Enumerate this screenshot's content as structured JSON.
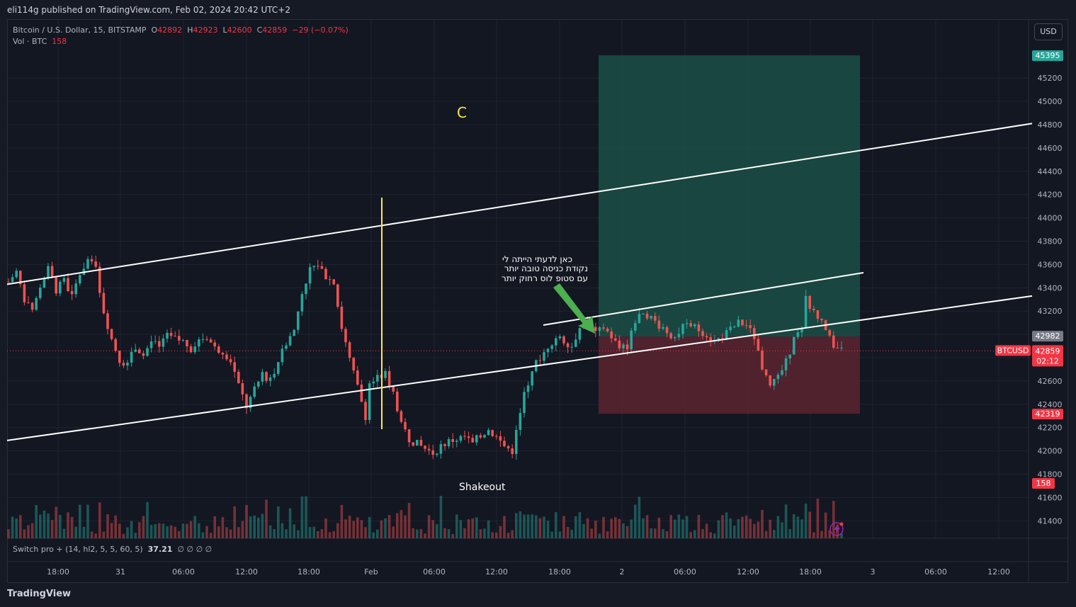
{
  "header": {
    "publisher": "eli114g published on TradingView.com, Feb 02, 2024 20:42 UTC+2"
  },
  "legend": {
    "symbol": "Bitcoin / U.S. Dollar, 15, BITSTAMP",
    "o_label": "O",
    "o_value": "42892",
    "h_label": "H",
    "h_value": "42923",
    "l_label": "L",
    "l_value": "42600",
    "c_label": "C",
    "c_value": "42859",
    "change": "−29 (−0.07%)",
    "vol_label": "Vol · BTC",
    "vol_value": "158"
  },
  "toolbar": {
    "currency_button": "USD"
  },
  "indicator": {
    "name": "Switch pro + (14, hl2, 5, 5, 60, 5)",
    "value": "37.21",
    "nulls": "∅ ∅ ∅ ∅"
  },
  "footer": {
    "brand": "TradingView"
  },
  "colors": {
    "up": "#26a69a",
    "down": "#ef5350",
    "target_zone": "#1b4f47",
    "stop_zone": "#5a2430",
    "yellow": "#ffeb3b",
    "arrow": "#4caf50"
  },
  "chart_data": {
    "type": "candlestick",
    "ylim": [
      41250,
      45700
    ],
    "y_ticks": [
      "45200",
      "45000",
      "44800",
      "44600",
      "44400",
      "44200",
      "44000",
      "43800",
      "43600",
      "43400",
      "43200",
      "43000",
      "42800",
      "42600",
      "42400",
      "42200",
      "42000",
      "41800",
      "41600",
      "41400"
    ],
    "x_ticks": [
      "18:00",
      "31",
      "06:00",
      "12:00",
      "18:00",
      "Feb",
      "06:00",
      "12:00",
      "18:00",
      "2",
      "06:00",
      "12:00",
      "18:00",
      "3",
      "06:00",
      "12:00"
    ],
    "price_labels": {
      "target": "45395",
      "entry": "42982",
      "symbol_tag": "BTCUSD",
      "last": "42859",
      "countdown": "02:12",
      "stop": "42319",
      "volume": "158"
    },
    "levels": {
      "target": 45395,
      "entry": 42982,
      "stop": 42319,
      "last": 42859
    },
    "annotations": {
      "wave_label": "C",
      "shakeout": "Shakeout",
      "note_line1": "כאן לדעתי הייתה לי",
      "note_line2": "נקודת כניסה טובה יותר",
      "note_line3": "עם סטופ לוס רחוק יותר"
    },
    "trend_lines": [
      {
        "from": [
          0,
          43430
        ],
        "to": [
          158,
          44810
        ]
      },
      {
        "from": [
          0,
          42090
        ],
        "to": [
          161,
          43330
        ]
      },
      {
        "from": [
          85,
          43080
        ],
        "to": [
          136,
          43530
        ]
      }
    ],
    "path": [
      [
        0,
        43450
      ],
      [
        2,
        43540
      ],
      [
        4,
        43300
      ],
      [
        6,
        43180
      ],
      [
        8,
        43420
      ],
      [
        10,
        43560
      ],
      [
        12,
        43380
      ],
      [
        14,
        43460
      ],
      [
        16,
        43320
      ],
      [
        18,
        43520
      ],
      [
        20,
        43640
      ],
      [
        22,
        43560
      ],
      [
        24,
        43200
      ],
      [
        26,
        42960
      ],
      [
        28,
        42780
      ],
      [
        30,
        42740
      ],
      [
        32,
        42900
      ],
      [
        34,
        42820
      ],
      [
        36,
        42940
      ],
      [
        38,
        42880
      ],
      [
        40,
        42980
      ],
      [
        42,
        42960
      ],
      [
        44,
        42940
      ],
      [
        46,
        42880
      ],
      [
        48,
        42950
      ],
      [
        50,
        42980
      ],
      [
        52,
        42880
      ],
      [
        54,
        42860
      ],
      [
        56,
        42780
      ],
      [
        58,
        42560
      ],
      [
        60,
        42380
      ],
      [
        62,
        42520
      ],
      [
        64,
        42660
      ],
      [
        66,
        42600
      ],
      [
        68,
        42780
      ],
      [
        70,
        42930
      ],
      [
        72,
        43040
      ],
      [
        74,
        43360
      ],
      [
        76,
        43560
      ],
      [
        78,
        43600
      ],
      [
        80,
        43500
      ],
      [
        82,
        43440
      ],
      [
        84,
        43060
      ],
      [
        86,
        42780
      ],
      [
        88,
        42550
      ],
      [
        90,
        42300
      ],
      [
        91,
        42580
      ],
      [
        93,
        42620
      ],
      [
        95,
        42660
      ],
      [
        97,
        42500
      ],
      [
        99,
        42240
      ],
      [
        101,
        42100
      ],
      [
        103,
        42060
      ],
      [
        105,
        42020
      ],
      [
        107,
        41980
      ],
      [
        109,
        42040
      ],
      [
        111,
        42080
      ],
      [
        113,
        42100
      ],
      [
        115,
        42120
      ],
      [
        117,
        42060
      ],
      [
        119,
        42140
      ],
      [
        121,
        42180
      ],
      [
        123,
        42120
      ],
      [
        125,
        42040
      ],
      [
        127,
        42000
      ],
      [
        128,
        42160
      ],
      [
        130,
        42480
      ],
      [
        132,
        42700
      ],
      [
        134,
        42800
      ],
      [
        136,
        42900
      ],
      [
        138,
        42980
      ],
      [
        140,
        42950
      ],
      [
        142,
        42900
      ],
      [
        144,
        43060
      ],
      [
        146,
        43100
      ],
      [
        148,
        43000
      ],
      [
        150,
        43060
      ],
      [
        152,
        42980
      ],
      [
        154,
        42880
      ],
      [
        156,
        42900
      ],
      [
        158,
        43120
      ],
      [
        160,
        43200
      ],
      [
        162,
        43140
      ],
      [
        164,
        43080
      ],
      [
        166,
        43020
      ],
      [
        168,
        42980
      ],
      [
        170,
        43060
      ],
      [
        172,
        43080
      ],
      [
        174,
        43040
      ],
      [
        176,
        43000
      ],
      [
        178,
        42940
      ],
      [
        180,
        42980
      ],
      [
        182,
        43040
      ],
      [
        184,
        43100
      ],
      [
        186,
        43080
      ],
      [
        188,
        42980
      ],
      [
        190,
        42680
      ],
      [
        192,
        42560
      ],
      [
        194,
        42620
      ],
      [
        196,
        42760
      ],
      [
        198,
        42960
      ],
      [
        200,
        43040
      ],
      [
        201,
        43300
      ],
      [
        203,
        43180
      ],
      [
        205,
        43100
      ],
      [
        207,
        42960
      ],
      [
        209,
        42880
      ],
      [
        210,
        42859
      ]
    ]
  }
}
